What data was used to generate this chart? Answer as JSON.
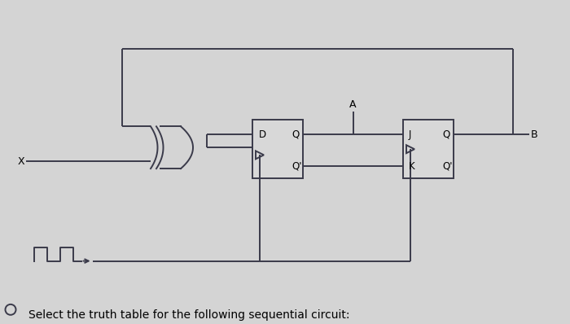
{
  "title": "Select the truth table for the following sequential circuit:",
  "bg_color": "#d4d4d4",
  "line_color": "#3a3a4a",
  "box_bg": "#d8d8d8",
  "title_fontsize": 10,
  "label_fontsize": 9,
  "fig_width": 7.0,
  "fig_height": 3.98,
  "label_X": "X",
  "label_A": "A",
  "label_B": "B",
  "label_D": "D",
  "label_Q": "Q",
  "label_Qp": "Q'",
  "label_J": "J",
  "label_K": "K"
}
